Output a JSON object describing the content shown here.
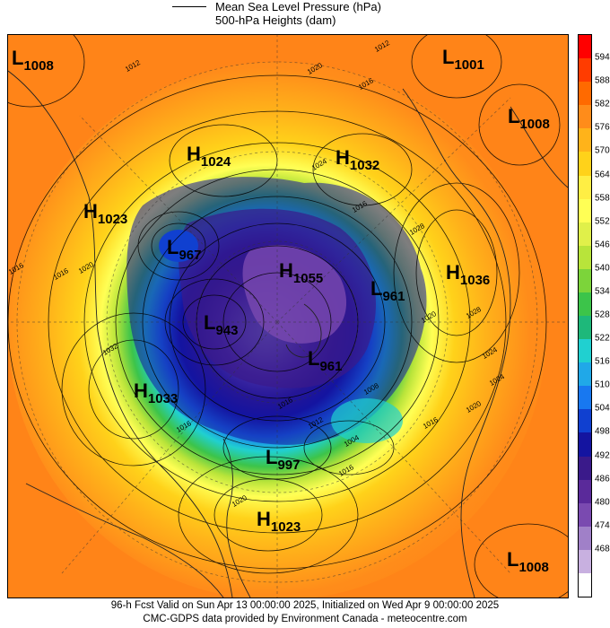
{
  "legend": {
    "mslp": "Mean Sea Level Pressure (hPa)",
    "heights": "500-hPa Heights (dam)"
  },
  "colorbar": {
    "labels": [
      "594",
      "588",
      "582",
      "576",
      "570",
      "564",
      "558",
      "552",
      "546",
      "540",
      "534",
      "528",
      "522",
      "516",
      "510",
      "504",
      "498",
      "492",
      "486",
      "480",
      "474",
      "468"
    ],
    "colors": [
      "#ff0000",
      "#ff3c00",
      "#ff6a00",
      "#ff8c1a",
      "#ffb31a",
      "#ffd21a",
      "#ffee44",
      "#ffff55",
      "#e0f04a",
      "#b8e43a",
      "#7cd43a",
      "#3cc44a",
      "#1eb87a",
      "#20d0d0",
      "#20a8e8",
      "#1878f0",
      "#1040d0",
      "#1414a0",
      "#3a1a8a",
      "#5a2a9a",
      "#7a4ab0",
      "#a080c8",
      "#c8b0e0",
      "#ffffff"
    ]
  },
  "centers": [
    {
      "type": "L",
      "value": "1008"
    },
    {
      "type": "L",
      "value": "1001"
    },
    {
      "type": "L",
      "value": "1008"
    },
    {
      "type": "H",
      "value": "1024"
    },
    {
      "type": "H",
      "value": "1032"
    },
    {
      "type": "H",
      "value": "1023"
    },
    {
      "type": "L",
      "value": "967"
    },
    {
      "type": "H",
      "value": "1055"
    },
    {
      "type": "H",
      "value": "1036"
    },
    {
      "type": "L",
      "value": "961"
    },
    {
      "type": "L",
      "value": "943"
    },
    {
      "type": "L",
      "value": "961"
    },
    {
      "type": "H",
      "value": "1033"
    },
    {
      "type": "L",
      "value": "997"
    },
    {
      "type": "H",
      "value": "1023"
    },
    {
      "type": "L",
      "value": "1008"
    }
  ],
  "isobar_labels": [
    "1012",
    "1020",
    "1016",
    "1012",
    "1024",
    "1016",
    "1028",
    "1020",
    "1016",
    "1016",
    "1020",
    "1024",
    "1028",
    "1032",
    "1016",
    "1008",
    "1004",
    "1016",
    "1012",
    "1016",
    "1016",
    "1020",
    "1020",
    "1024"
  ],
  "footer": {
    "valid": "96-h Fcst Valid on Sun Apr 13 00:00:00 2025, Initialized on Wed Apr  9 00:00:00 2025",
    "credit": "CMC-GDPS data provided by Environment Canada - meteocentre.com"
  }
}
